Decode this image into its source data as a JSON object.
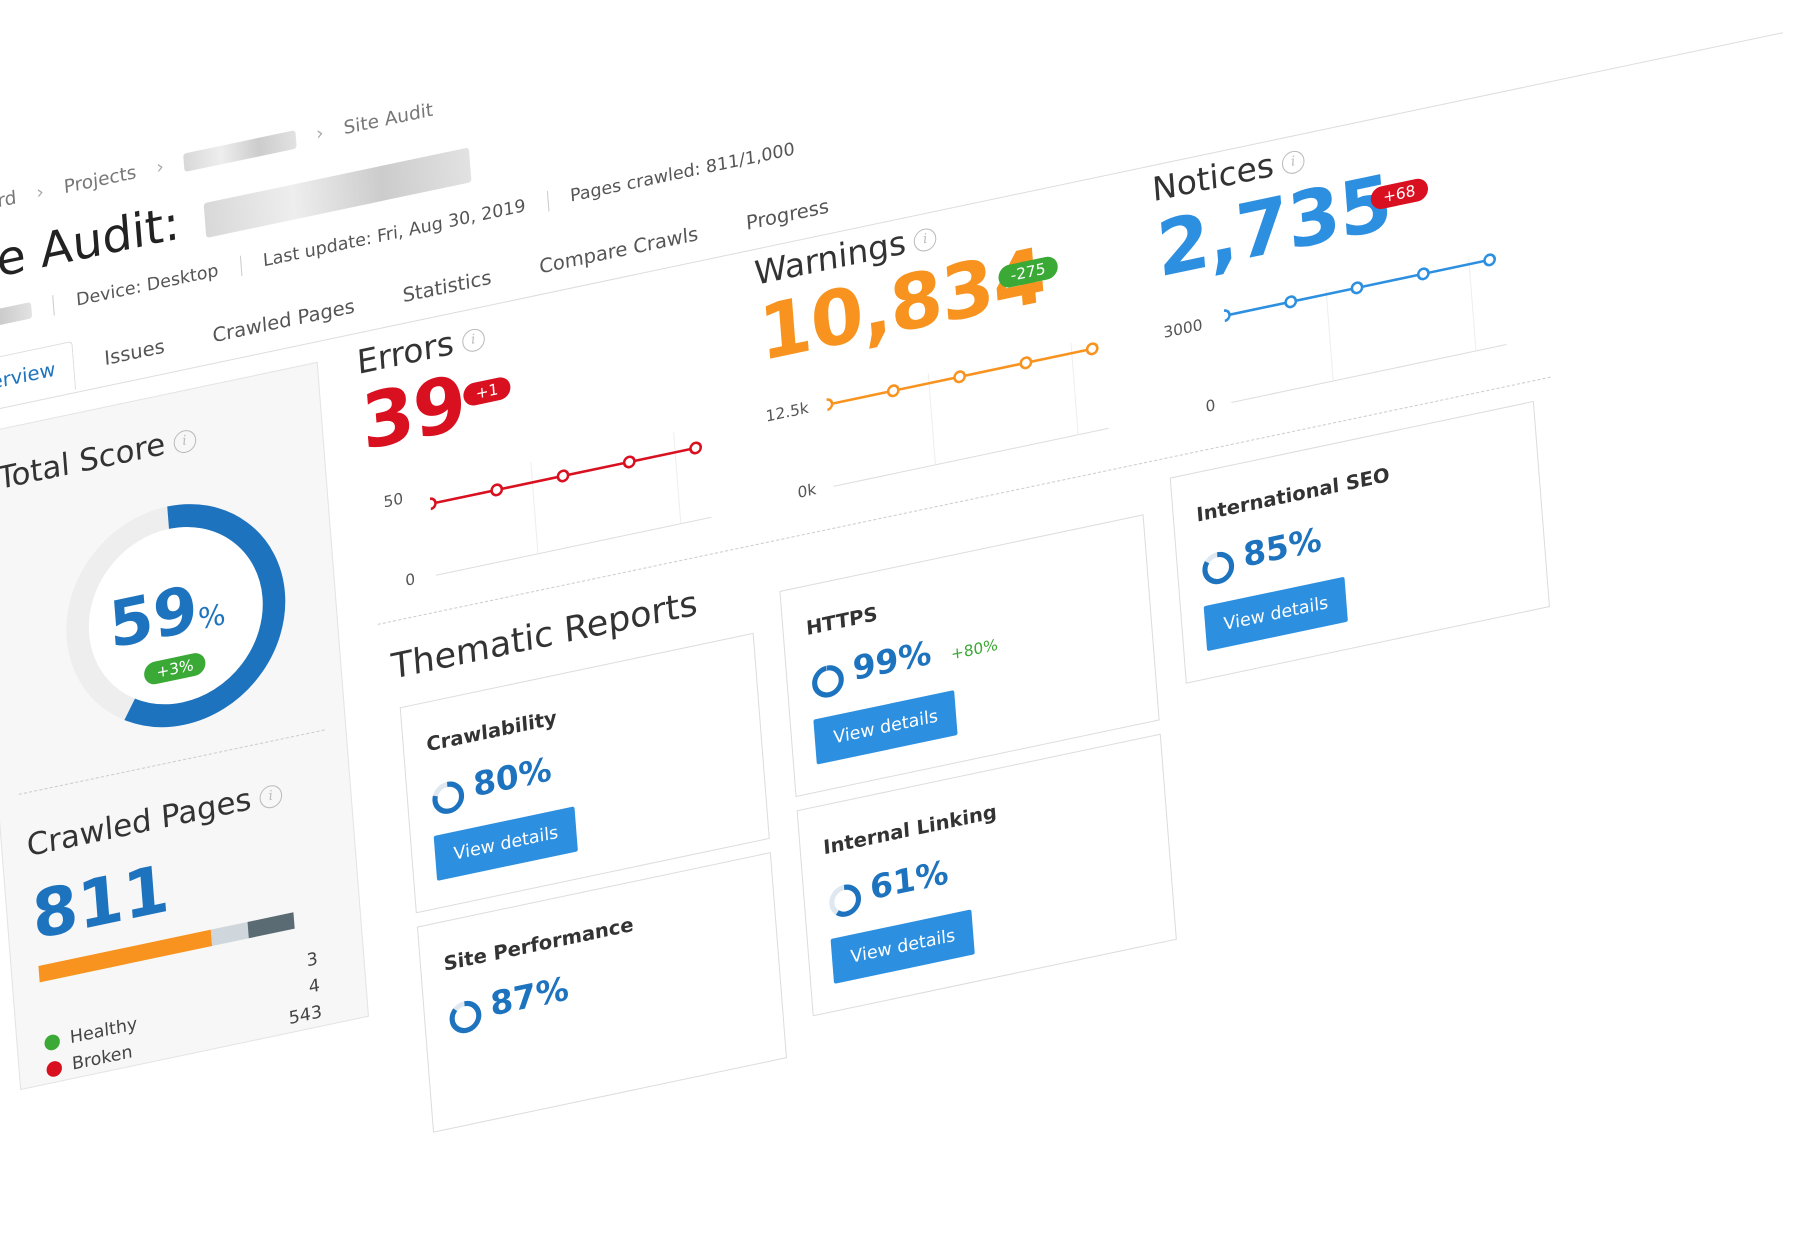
{
  "breadcrumb": {
    "items": [
      "ashboard",
      "Projects",
      "Site Audit"
    ]
  },
  "page": {
    "title": "Site Audit:"
  },
  "meta": {
    "device": "Device: Desktop",
    "last_update": "Last update: Fri, Aug 30, 2019",
    "pages_crawled": "Pages crawled: 811/1,000"
  },
  "tabs": [
    "Overview",
    "Issues",
    "Crawled Pages",
    "Statistics",
    "Compare Crawls",
    "Progress"
  ],
  "total_score": {
    "label": "Total Score",
    "value": "59",
    "unit": "%",
    "delta": "+3%",
    "fraction": 0.59
  },
  "crawled_pages": {
    "label": "Crawled Pages",
    "value": "811",
    "bar_colors": [
      "#f7931e",
      "#cfd6dc",
      "#5b6b73"
    ],
    "legend": [
      {
        "label": "Healthy",
        "count": "3",
        "color": "#3aa935"
      },
      {
        "label": "Broken",
        "count": "4",
        "color": "#d8101f"
      },
      {
        "label": "",
        "count": "543",
        "color": ""
      }
    ]
  },
  "metrics": {
    "errors": {
      "label": "Errors",
      "value": "39",
      "delta": "+1",
      "delta_color": "red",
      "color": "#d8101f",
      "ytop": "50",
      "ybottom": "0"
    },
    "warnings": {
      "label": "Warnings",
      "value": "10,834",
      "delta": "-275",
      "delta_color": "green",
      "color": "#f7931e",
      "ytop": "12.5k",
      "ybottom": "0k"
    },
    "notices": {
      "label": "Notices",
      "value": "2,735",
      "delta": "+68",
      "delta_color": "red",
      "color": "#2d8fe0",
      "ytop": "3000",
      "ybottom": "0"
    }
  },
  "thematic": {
    "title": "Thematic Reports",
    "view_details": "View details",
    "reports": [
      {
        "name": "Crawlability",
        "pct": "80%",
        "delta": "",
        "fraction": 0.8
      },
      {
        "name": "HTTPS",
        "pct": "99%",
        "delta": "+80%",
        "fraction": 0.99
      },
      {
        "name": "International SEO",
        "pct": "85%",
        "delta": "",
        "fraction": 0.85
      },
      {
        "name": "Site Performance",
        "pct": "87%",
        "delta": "",
        "fraction": 0.87
      },
      {
        "name": "Internal Linking",
        "pct": "61%",
        "delta": "",
        "fraction": 0.61
      }
    ]
  }
}
